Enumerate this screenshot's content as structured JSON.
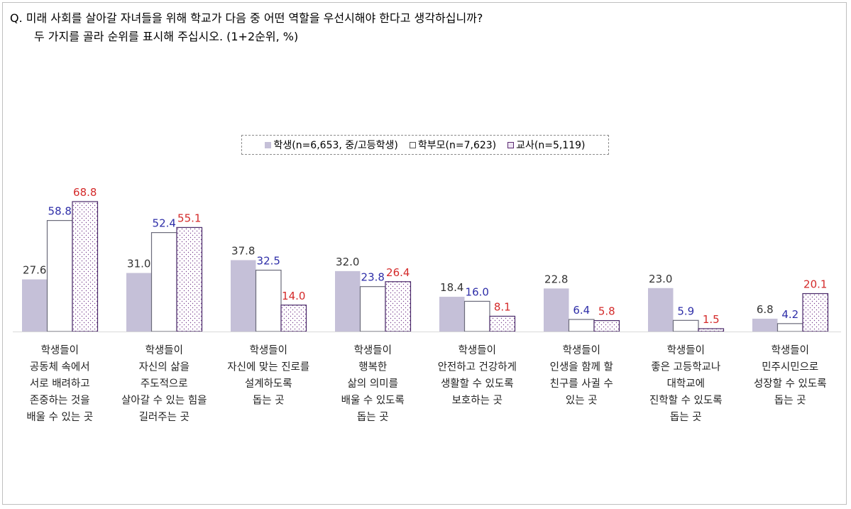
{
  "title_line1": "Q. 미래 사회를 살아갈 자녀들을 위해 학교가 다음 중 어떤 역할을 우선시해야 한다고 생각하십니까?",
  "title_line2": "두 가지를 골라 순위를 표시해 주십시오. (1+2순위, %)",
  "chart_data": {
    "type": "bar",
    "title": "",
    "ylim": [
      0,
      75
    ],
    "grid": false,
    "legend_placement": "top-center",
    "categories": [
      [
        "학생들이",
        "공동체 속에서",
        "서로 배려하고",
        "존중하는 것을",
        "배울 수 있는 곳"
      ],
      [
        "학생들이",
        "자신의 삶을",
        "주도적으로",
        "살아갈 수 있는 힘을",
        "길러주는 곳"
      ],
      [
        "학생들이",
        "자신에 맞는 진로를",
        "설계하도록",
        "돕는 곳"
      ],
      [
        "학생들이",
        "행복한",
        "삶의 의미를",
        "배울 수 있도록",
        "돕는 곳"
      ],
      [
        "학생들이",
        "안전하고 건강하게",
        "생활할 수 있도록",
        "보호하는 곳"
      ],
      [
        "학생들이",
        "인생을 함께 할",
        "친구를 사귈 수",
        "있는 곳"
      ],
      [
        "학생들이",
        "좋은 고등학교나",
        "대학교에",
        "진학할 수 있도록",
        "돕는 곳"
      ],
      [
        "학생들이",
        "민주시민으로",
        "성장할 수 있도록",
        "돕는 곳"
      ]
    ],
    "series": [
      {
        "name": "학생(n=6,653, 중/고등학생)",
        "values": [
          27.6,
          31.0,
          37.8,
          32.0,
          18.4,
          22.8,
          23.0,
          6.8
        ],
        "color": "#c5c0d8",
        "label_color": "#333333"
      },
      {
        "name": "학부모(n=7,623)",
        "values": [
          58.8,
          52.4,
          32.5,
          23.8,
          16.0,
          6.4,
          5.9,
          4.2
        ],
        "color": "#ffffff",
        "label_color": "#2e2ea8"
      },
      {
        "name": "교사(n=5,119)",
        "values": [
          68.8,
          55.1,
          14.0,
          26.4,
          8.1,
          5.8,
          1.5,
          20.1
        ],
        "color": "#7a3f8f",
        "label_color": "#d42a2a"
      }
    ]
  }
}
